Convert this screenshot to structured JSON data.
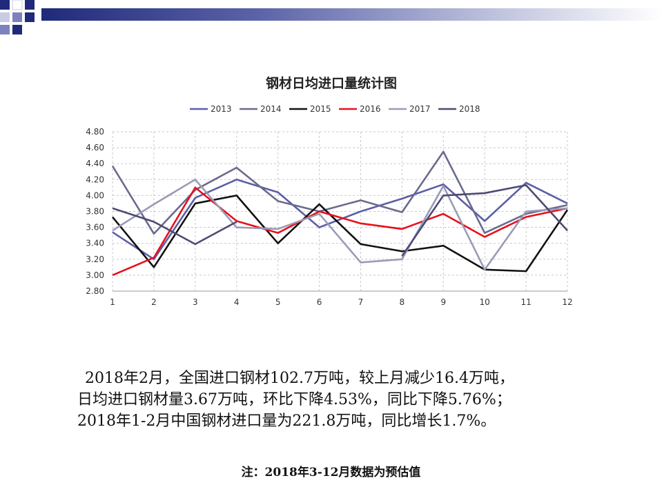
{
  "chart_data": {
    "type": "line",
    "title": "钢材日均进口量统计图",
    "categories": [
      "1",
      "2",
      "3",
      "4",
      "5",
      "6",
      "7",
      "8",
      "9",
      "10",
      "11",
      "12"
    ],
    "ylim": [
      2.8,
      4.8
    ],
    "yticks": [
      "2.80",
      "3.00",
      "3.20",
      "3.40",
      "3.60",
      "3.80",
      "4.00",
      "4.20",
      "4.40",
      "4.60",
      "4.80"
    ],
    "grid": true,
    "legend_position": "top",
    "series": [
      {
        "name": "2013",
        "color": "#5b5fa6",
        "values": [
          3.54,
          3.2,
          3.97,
          4.2,
          4.04,
          3.6,
          3.8,
          3.96,
          4.14,
          3.68,
          4.16,
          3.9
        ]
      },
      {
        "name": "2014",
        "color": "#6a6a8e",
        "values": [
          4.37,
          3.52,
          4.07,
          4.35,
          3.93,
          3.8,
          3.94,
          3.79,
          4.55,
          3.53,
          3.77,
          3.88
        ]
      },
      {
        "name": "2015",
        "color": "#111111",
        "values": [
          3.73,
          3.1,
          3.9,
          4.0,
          3.4,
          3.89,
          3.39,
          3.3,
          3.37,
          3.07,
          3.05,
          3.82
        ]
      },
      {
        "name": "2016",
        "color": "#e8101a",
        "values": [
          3.0,
          3.22,
          4.1,
          3.68,
          3.53,
          3.8,
          3.65,
          3.58,
          3.77,
          3.48,
          3.73,
          3.84
        ]
      },
      {
        "name": "2017",
        "color": "#9a9ab8",
        "values": [
          3.56,
          3.89,
          4.2,
          3.6,
          3.58,
          3.77,
          3.16,
          3.2,
          4.12,
          3.07,
          3.8,
          3.84
        ]
      },
      {
        "name": "2018",
        "color": "#4d4a73",
        "values": [
          3.84,
          3.67,
          3.39,
          3.67,
          null,
          null,
          null,
          3.24,
          4.0,
          4.03,
          4.13,
          3.56
        ]
      }
    ]
  },
  "text": {
    "line1": "2018年2月，全国进口钢材102.7万吨，较上月减少16.4万吨，",
    "line2": "日均进口钢材量3.67万吨，环比下降4.53%，同比下降5.76%；",
    "line3": "2018年1-2月中国钢材进口量为221.8万吨，同比增长1.7%。"
  },
  "note": "注：2018年3-12月数据为预估值",
  "colors": {
    "accent": "#1f2a7a",
    "accent_light": "#7c82bf"
  }
}
